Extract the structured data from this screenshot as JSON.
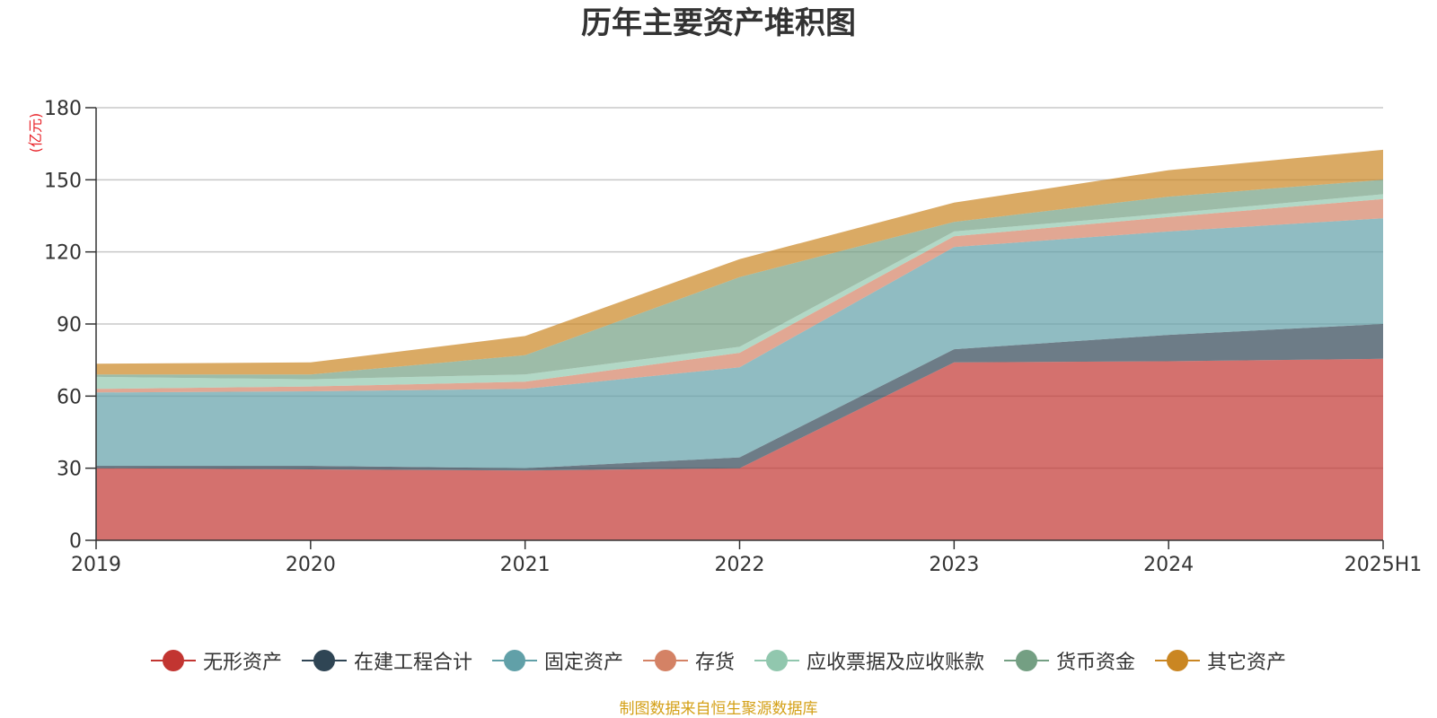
{
  "chart_data": {
    "type": "area",
    "stacked": true,
    "title": "历年主要资产堆积图",
    "unit_label": "(亿元)",
    "x": [
      "2019",
      "2020",
      "2021",
      "2022",
      "2023",
      "2024",
      "2025H1"
    ],
    "ylim": [
      0,
      180
    ],
    "yticks": [
      "0",
      "30",
      "60",
      "90",
      "120",
      "150",
      "180"
    ],
    "grid": true,
    "legend_position": "bottom",
    "series": [
      {
        "name": "无形资产",
        "color": "#c23531",
        "values": [
          30,
          29.5,
          29,
          30,
          74,
          74.5,
          75.5
        ]
      },
      {
        "name": "在建工程合计",
        "color": "#2f4554",
        "values": [
          1,
          1.5,
          1,
          4.5,
          5.5,
          11,
          14.5
        ]
      },
      {
        "name": "固定资产",
        "color": "#61a0a8",
        "values": [
          30.5,
          31,
          33,
          37.5,
          42.5,
          43,
          44
        ]
      },
      {
        "name": "存货",
        "color": "#d48265",
        "values": [
          1.5,
          2,
          3,
          6,
          4.5,
          6,
          8
        ]
      },
      {
        "name": "应收票据及应收账款",
        "color": "#91c7ae",
        "values": [
          5,
          3,
          3,
          2.5,
          2,
          1.5,
          2
        ]
      },
      {
        "name": "货币资金",
        "color": "#749f83",
        "values": [
          1,
          2,
          8,
          29,
          4,
          7,
          6
        ]
      },
      {
        "name": "其它资产",
        "color": "#ca8622",
        "values": [
          4.5,
          5,
          8,
          7.5,
          8,
          11,
          12.5
        ]
      }
    ]
  },
  "source_note": "制图数据来自恒生聚源数据库"
}
